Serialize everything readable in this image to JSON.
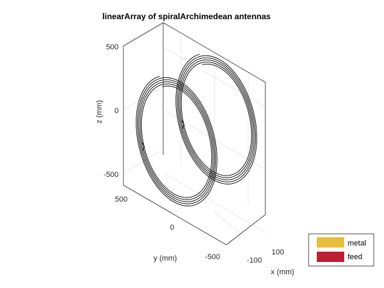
{
  "figure": {
    "title": "linearArray of spiralArchimedean antennas"
  },
  "axes": {
    "xlabel": "x (mm)",
    "ylabel": "y (mm)",
    "zlabel": "z (mm)",
    "x_ticks": [
      "-100",
      "100"
    ],
    "y_ticks": [
      "500",
      "0",
      "-500"
    ],
    "z_ticks": [
      "500",
      "0",
      "-500"
    ],
    "grid": true
  },
  "legend": {
    "placement": "bottom-right",
    "items": [
      {
        "label": "metal",
        "color": "#e6bd3c"
      },
      {
        "label": "feed",
        "color": "#be1e32"
      }
    ]
  },
  "colors": {
    "spiral_stroke": "#000000",
    "box_stroke": "#262626",
    "grid_stroke": "#d9d9d9"
  },
  "antennas": [
    {
      "name": "spiralArchimedean",
      "turns": 5
    },
    {
      "name": "spiralArchimedean",
      "turns": 5
    }
  ]
}
